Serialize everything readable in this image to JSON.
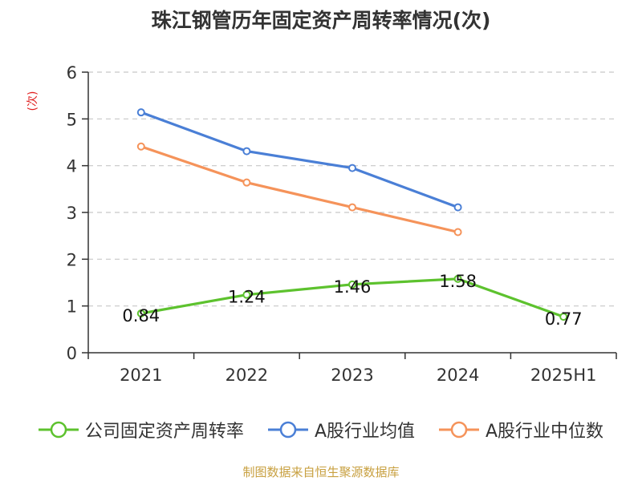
{
  "chart_data": {
    "type": "line",
    "title": "珠江钢管历年固定资产周转率情况(次)",
    "ylabel": "(次)",
    "categories": [
      "2021",
      "2022",
      "2023",
      "2024",
      "2025H1"
    ],
    "ylim": [
      0,
      6
    ],
    "yticks": [
      0,
      1,
      2,
      3,
      4,
      5,
      6
    ],
    "grid": true,
    "legend_position": "bottom",
    "series": [
      {
        "name": "公司固定资产周转率",
        "color": "#5dc22e",
        "values": [
          0.84,
          1.24,
          1.46,
          1.58,
          0.77
        ],
        "labels": true
      },
      {
        "name": "A股行业均值",
        "color": "#4a7fd6",
        "values": [
          5.14,
          4.31,
          3.95,
          3.11,
          null
        ],
        "labels": false
      },
      {
        "name": "A股行业中位数",
        "color": "#f5935a",
        "values": [
          4.41,
          3.64,
          3.11,
          2.58,
          null
        ],
        "labels": false
      }
    ]
  },
  "source": "制图数据来自恒生聚源数据库"
}
